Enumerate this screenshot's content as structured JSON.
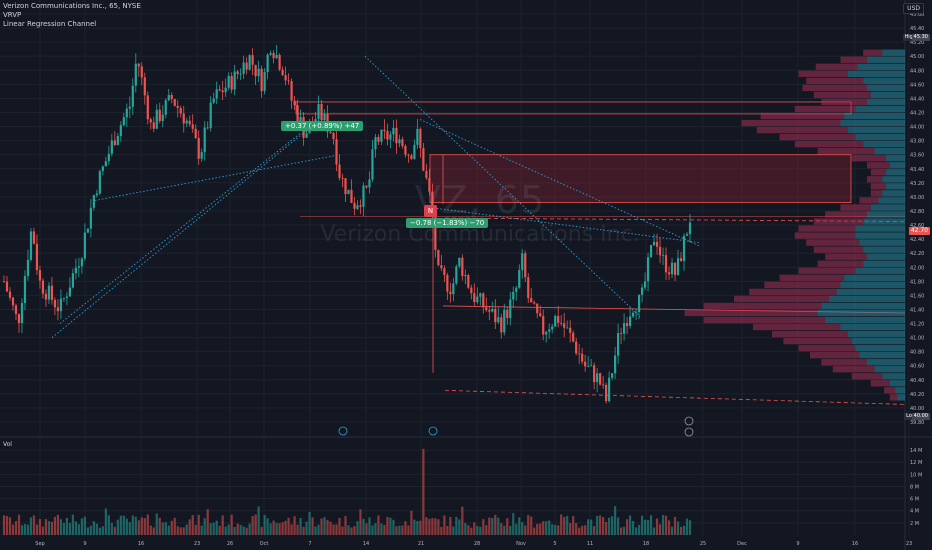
{
  "legend": {
    "title": "Verizon Communications Inc., 65, NYSE",
    "indicator_1": "VRVP",
    "indicator_2": "Linear Regression Channel"
  },
  "volume_label": "Vol",
  "currency": "USD",
  "watermark": {
    "symbol": "VZ, 65",
    "name": "Verizon Communications Inc."
  },
  "measure_labels": {
    "up": "+0.37 (+0.89%) +47",
    "down": "−0.78 (−1.83%) −70"
  },
  "marker_badge": "N",
  "price_tags": {
    "high": "High",
    "high_value": "45.30",
    "current": "42.70",
    "low": "Low",
    "low_value": "40.00"
  },
  "colors": {
    "background": "#131722",
    "up": "#26a69a",
    "down": "#ef5350",
    "grid": "#1e222d",
    "zone": "#b2283a"
  },
  "chart_data": {
    "type": "candlestick",
    "price_axis": {
      "ticks": [
        "45.60",
        "45.40",
        "45.20",
        "45.00",
        "44.80",
        "44.60",
        "44.40",
        "44.20",
        "44.00",
        "43.80",
        "43.60",
        "43.40",
        "43.20",
        "43.00",
        "42.80",
        "42.60",
        "42.40",
        "42.20",
        "42.00",
        "41.80",
        "41.60",
        "41.40",
        "41.20",
        "41.00",
        "40.80",
        "40.60",
        "40.40",
        "40.20",
        "40.00",
        "39.80"
      ],
      "range": [
        39.8,
        45.7
      ]
    },
    "volume_axis": {
      "ticks": [
        "14 M",
        "12 M",
        "10 M",
        "8 M",
        "6 M",
        "4 M",
        "2 M"
      ],
      "range": [
        0,
        15
      ]
    },
    "time_axis": {
      "labels": [
        "Sep",
        "9",
        "16",
        "23",
        "26",
        "Oct",
        "7",
        "14",
        "21",
        "28",
        "Nov",
        "5",
        "11",
        "18",
        "25",
        "Dec",
        "9",
        "16",
        "23"
      ]
    },
    "key_levels": [
      44.35,
      44.18,
      43.6,
      42.92,
      41.37
    ],
    "ohlc_path": [
      {
        "t": 0,
        "c": 41.8
      },
      {
        "t": 2,
        "c": 41.2
      },
      {
        "t": 4,
        "c": 42.6
      },
      {
        "t": 5,
        "c": 41.8
      },
      {
        "t": 8,
        "c": 41.4
      },
      {
        "t": 11,
        "c": 42.2
      },
      {
        "t": 13,
        "c": 43.1
      },
      {
        "t": 16,
        "c": 43.9
      },
      {
        "t": 18,
        "c": 44.3
      },
      {
        "t": 19,
        "c": 45.0
      },
      {
        "t": 21,
        "c": 44.0
      },
      {
        "t": 24,
        "c": 44.4
      },
      {
        "t": 26,
        "c": 44.1
      },
      {
        "t": 28,
        "c": 43.6
      },
      {
        "t": 30,
        "c": 44.4
      },
      {
        "t": 33,
        "c": 44.7
      },
      {
        "t": 35,
        "c": 45.0
      },
      {
        "t": 37,
        "c": 44.6
      },
      {
        "t": 38,
        "c": 45.2
      },
      {
        "t": 40,
        "c": 44.8
      },
      {
        "t": 41,
        "c": 44.4
      },
      {
        "t": 43,
        "c": 43.9
      },
      {
        "t": 45,
        "c": 44.2
      },
      {
        "t": 47,
        "c": 43.9
      },
      {
        "t": 48,
        "c": 43.3
      },
      {
        "t": 50,
        "c": 42.9
      },
      {
        "t": 52,
        "c": 43.1
      },
      {
        "t": 53,
        "c": 43.8
      },
      {
        "t": 56,
        "c": 43.9
      },
      {
        "t": 58,
        "c": 43.6
      },
      {
        "t": 59,
        "c": 43.9
      },
      {
        "t": 61,
        "c": 42.9
      },
      {
        "t": 62,
        "c": 41.9
      },
      {
        "t": 64,
        "c": 41.7
      },
      {
        "t": 65,
        "c": 42.1
      },
      {
        "t": 67,
        "c": 41.6
      },
      {
        "t": 69,
        "c": 41.4
      },
      {
        "t": 71,
        "c": 41.2
      },
      {
        "t": 73,
        "c": 41.6
      },
      {
        "t": 74,
        "c": 42.1
      },
      {
        "t": 75,
        "c": 41.5
      },
      {
        "t": 77,
        "c": 41.1
      },
      {
        "t": 79,
        "c": 41.3
      },
      {
        "t": 81,
        "c": 41.0
      },
      {
        "t": 83,
        "c": 40.6
      },
      {
        "t": 85,
        "c": 40.4
      },
      {
        "t": 86,
        "c": 40.1
      },
      {
        "t": 87,
        "c": 40.6
      },
      {
        "t": 88,
        "c": 41.1
      },
      {
        "t": 90,
        "c": 41.5
      },
      {
        "t": 91,
        "c": 41.5
      },
      {
        "t": 93,
        "c": 42.5
      },
      {
        "t": 94,
        "c": 42.1
      },
      {
        "t": 96,
        "c": 41.9
      },
      {
        "t": 97,
        "c": 42.3
      },
      {
        "t": 98,
        "c": 42.7
      }
    ],
    "volume_profile": [
      {
        "p": 45.05,
        "up": 0.12,
        "down": 0.1
      },
      {
        "p": 44.95,
        "up": 0.2,
        "down": 0.14
      },
      {
        "p": 44.85,
        "up": 0.25,
        "down": 0.22
      },
      {
        "p": 44.75,
        "up": 0.3,
        "down": 0.26
      },
      {
        "p": 44.65,
        "up": 0.22,
        "down": 0.3
      },
      {
        "p": 44.55,
        "up": 0.2,
        "down": 0.34
      },
      {
        "p": 44.45,
        "up": 0.18,
        "down": 0.3
      },
      {
        "p": 44.35,
        "up": 0.2,
        "down": 0.24
      },
      {
        "p": 44.25,
        "up": 0.26,
        "down": 0.32
      },
      {
        "p": 44.15,
        "up": 0.32,
        "down": 0.44
      },
      {
        "p": 44.05,
        "up": 0.34,
        "down": 0.52
      },
      {
        "p": 43.95,
        "up": 0.3,
        "down": 0.48
      },
      {
        "p": 43.85,
        "up": 0.26,
        "down": 0.4
      },
      {
        "p": 43.75,
        "up": 0.22,
        "down": 0.36
      },
      {
        "p": 43.65,
        "up": 0.16,
        "down": 0.3
      },
      {
        "p": 43.55,
        "up": 0.1,
        "down": 0.18
      },
      {
        "p": 43.45,
        "up": 0.08,
        "down": 0.12
      },
      {
        "p": 43.35,
        "up": 0.1,
        "down": 0.08
      },
      {
        "p": 43.25,
        "up": 0.12,
        "down": 0.08
      },
      {
        "p": 43.15,
        "up": 0.1,
        "down": 0.08
      },
      {
        "p": 43.05,
        "up": 0.12,
        "down": 0.06
      },
      {
        "p": 42.95,
        "up": 0.14,
        "down": 0.1
      },
      {
        "p": 42.85,
        "up": 0.18,
        "down": 0.16
      },
      {
        "p": 42.75,
        "up": 0.2,
        "down": 0.22
      },
      {
        "p": 42.65,
        "up": 0.22,
        "down": 0.26
      },
      {
        "p": 42.55,
        "up": 0.26,
        "down": 0.3
      },
      {
        "p": 42.45,
        "up": 0.26,
        "down": 0.32
      },
      {
        "p": 42.35,
        "up": 0.24,
        "down": 0.28
      },
      {
        "p": 42.25,
        "up": 0.22,
        "down": 0.26
      },
      {
        "p": 42.15,
        "up": 0.2,
        "down": 0.22
      },
      {
        "p": 42.05,
        "up": 0.22,
        "down": 0.24
      },
      {
        "p": 41.95,
        "up": 0.26,
        "down": 0.3
      },
      {
        "p": 41.85,
        "up": 0.32,
        "down": 0.34
      },
      {
        "p": 41.75,
        "up": 0.34,
        "down": 0.4
      },
      {
        "p": 41.65,
        "up": 0.36,
        "down": 0.46
      },
      {
        "p": 41.55,
        "up": 0.4,
        "down": 0.5
      },
      {
        "p": 41.45,
        "up": 0.44,
        "down": 0.62
      },
      {
        "p": 41.35,
        "up": 0.46,
        "down": 0.7
      },
      {
        "p": 41.25,
        "up": 0.42,
        "down": 0.64
      },
      {
        "p": 41.15,
        "up": 0.34,
        "down": 0.46
      },
      {
        "p": 41.05,
        "up": 0.3,
        "down": 0.4
      },
      {
        "p": 40.95,
        "up": 0.28,
        "down": 0.36
      },
      {
        "p": 40.85,
        "up": 0.26,
        "down": 0.3
      },
      {
        "p": 40.75,
        "up": 0.24,
        "down": 0.26
      },
      {
        "p": 40.65,
        "up": 0.2,
        "down": 0.24
      },
      {
        "p": 40.55,
        "up": 0.16,
        "down": 0.22
      },
      {
        "p": 40.45,
        "up": 0.12,
        "down": 0.16
      },
      {
        "p": 40.35,
        "up": 0.08,
        "down": 0.1
      },
      {
        "p": 40.25,
        "up": 0.05,
        "down": 0.06
      },
      {
        "p": 40.15,
        "up": 0.04,
        "down": 0.04
      }
    ]
  }
}
